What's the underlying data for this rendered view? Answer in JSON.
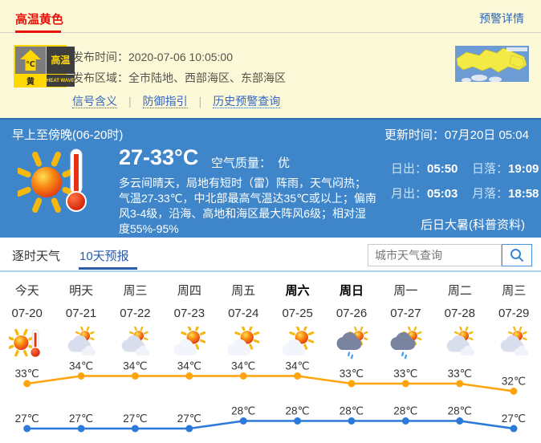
{
  "alert": {
    "title": "高温黄色",
    "details_link": "预警详情",
    "badge": {
      "arrow_label": "℃",
      "right": "高温",
      "bottom_left": "黄",
      "bottom_right": "HEAT WAVE"
    },
    "publish_time_label": "发布时间：",
    "publish_time": "2020-07-06 10:05:00",
    "area_label": "发布区域：",
    "area": "全市陆地、西部海区、东部海区",
    "links": [
      "信号含义",
      "防御指引",
      "历史预警查询"
    ],
    "separator": "|"
  },
  "current": {
    "period": "早上至傍晚(06-20时)",
    "update_label": "更新时间：",
    "update_value": "07月20日 05:04",
    "temp_range": "27-33°C",
    "air_label": "空气质量：",
    "air_value": "优",
    "description": "多云间晴天，局地有短时（雷）阵雨，天气闷热；气温27-33℃，中北部最高气温达35℃或以上；偏南风3-4级，沿海、高地和海区最大阵风6级；相对湿度55%-95%",
    "sun_moon": [
      {
        "label": "日出：",
        "value": "05:50"
      },
      {
        "label": "日落：",
        "value": "19:09"
      },
      {
        "label": "月出：",
        "value": "05:03"
      },
      {
        "label": "月落：",
        "value": "18:58"
      }
    ],
    "solar_term": "后日大暑(科普资料)"
  },
  "tabs": [
    {
      "label": "逐时天气",
      "active": false
    },
    {
      "label": "10天预报",
      "active": true
    }
  ],
  "search": {
    "placeholder": "城市天气查询"
  },
  "forecast": {
    "days": [
      {
        "name": "今天",
        "date": "07-20",
        "icon": "sun-thermometer",
        "weekend": false
      },
      {
        "name": "明天",
        "date": "07-21",
        "icon": "cloudy",
        "weekend": false
      },
      {
        "name": "周三",
        "date": "07-22",
        "icon": "cloudy",
        "weekend": false
      },
      {
        "name": "周四",
        "date": "07-23",
        "icon": "sun-cloud",
        "weekend": false
      },
      {
        "name": "周五",
        "date": "07-24",
        "icon": "sun-cloud",
        "weekend": false
      },
      {
        "name": "周六",
        "date": "07-25",
        "icon": "sun-cloud",
        "weekend": true
      },
      {
        "name": "周日",
        "date": "07-26",
        "icon": "rain-sun",
        "weekend": true
      },
      {
        "name": "周一",
        "date": "07-27",
        "icon": "rain-sun",
        "weekend": false
      },
      {
        "name": "周二",
        "date": "07-28",
        "icon": "cloudy",
        "weekend": false
      },
      {
        "name": "周三",
        "date": "07-29",
        "icon": "cloudy",
        "weekend": false
      }
    ]
  },
  "chart_data": {
    "type": "line",
    "categories": [
      "07-20",
      "07-21",
      "07-22",
      "07-23",
      "07-24",
      "07-25",
      "07-26",
      "07-27",
      "07-28",
      "07-29"
    ],
    "series": [
      {
        "name": "high",
        "color": "#ffa40d",
        "values": [
          33,
          34,
          34,
          34,
          34,
          34,
          33,
          33,
          33,
          32
        ]
      },
      {
        "name": "low",
        "color": "#2b79d8",
        "values": [
          27,
          27,
          27,
          27,
          28,
          28,
          28,
          28,
          28,
          27
        ]
      }
    ],
    "unit": "℃",
    "ylim": [
      26,
      35
    ],
    "grid": false,
    "legend": "none"
  },
  "colors": {
    "alert_red": "#e8140c",
    "alert_yellow_bg": "#fbf9d7",
    "panel_blue": "#3e86c9",
    "link_blue": "#2d64b3",
    "tab_active_blue": "#2a5caa",
    "high_line": "#ffa40d",
    "low_line": "#2b79d8"
  }
}
